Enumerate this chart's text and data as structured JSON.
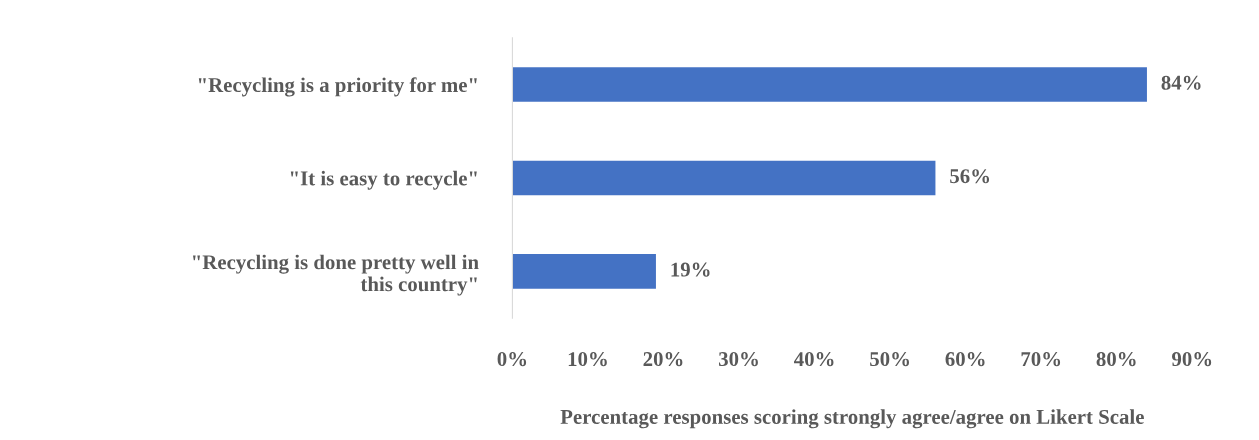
{
  "chart_data": {
    "type": "bar",
    "orientation": "horizontal",
    "categories": [
      "\"Recycling is a priority for me\"",
      "\"It is easy to recycle\"",
      "\"Recycling is done pretty well in this country\""
    ],
    "values": [
      84,
      56,
      19
    ],
    "value_labels": [
      "84%",
      "56%",
      "19%"
    ],
    "color": "#4472c4",
    "xlabel": "Percentage responses scoring strongly agree/agree on Likert Scale",
    "xlim": [
      0,
      90
    ],
    "xticks": [
      {
        "value": 0,
        "label": "0%"
      },
      {
        "value": 10,
        "label": "10%"
      },
      {
        "value": 20,
        "label": "20%"
      },
      {
        "value": 30,
        "label": "30%"
      },
      {
        "value": 40,
        "label": "40%"
      },
      {
        "value": 50,
        "label": "50%"
      },
      {
        "value": 60,
        "label": "60%"
      },
      {
        "value": 70,
        "label": "70%"
      },
      {
        "value": 80,
        "label": "80%"
      },
      {
        "value": 90,
        "label": "90%"
      }
    ],
    "grid": false,
    "legend": false
  }
}
